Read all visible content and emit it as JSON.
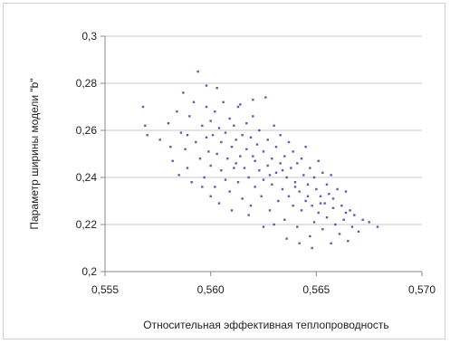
{
  "chart_data": {
    "type": "scatter",
    "title": "",
    "xlabel": "Относительная эффективная теплопроводность",
    "ylabel": "Параметр ширины модели \"b\"",
    "xlim": [
      0.555,
      0.57
    ],
    "ylim": [
      0.2,
      0.3
    ],
    "x_ticks": [
      "0,555",
      "0,560",
      "0,565",
      "0,570"
    ],
    "y_ticks": [
      "0,2",
      "0,22",
      "0,24",
      "0,26",
      "0,28",
      "0,3"
    ],
    "x_tick_values": [
      0.555,
      0.56,
      0.565,
      0.57
    ],
    "y_tick_values": [
      0.2,
      0.22,
      0.24,
      0.26,
      0.28,
      0.3
    ],
    "grid": "horizontal",
    "marker_color": "#2b3a9e",
    "grid_color": "#c8c8c8",
    "series": [
      {
        "points": [
          [
            0.5568,
            0.27
          ],
          [
            0.557,
            0.258
          ],
          [
            0.5569,
            0.262
          ],
          [
            0.5576,
            0.256
          ],
          [
            0.558,
            0.263
          ],
          [
            0.5581,
            0.253
          ],
          [
            0.5582,
            0.247
          ],
          [
            0.5584,
            0.268
          ],
          [
            0.5585,
            0.241
          ],
          [
            0.5586,
            0.259
          ],
          [
            0.5587,
            0.276
          ],
          [
            0.5588,
            0.252
          ],
          [
            0.5589,
            0.244
          ],
          [
            0.559,
            0.266
          ],
          [
            0.5591,
            0.238
          ],
          [
            0.5592,
            0.272
          ],
          [
            0.5593,
            0.255
          ],
          [
            0.5594,
            0.285
          ],
          [
            0.5595,
            0.248
          ],
          [
            0.5596,
            0.262
          ],
          [
            0.5597,
            0.24
          ],
          [
            0.5598,
            0.257
          ],
          [
            0.5598,
            0.27
          ],
          [
            0.5599,
            0.251
          ],
          [
            0.56,
            0.264
          ],
          [
            0.56,
            0.245
          ],
          [
            0.5601,
            0.258
          ],
          [
            0.5602,
            0.236
          ],
          [
            0.5602,
            0.268
          ],
          [
            0.5603,
            0.25
          ],
          [
            0.5604,
            0.261
          ],
          [
            0.5605,
            0.243
          ],
          [
            0.5605,
            0.255
          ],
          [
            0.5606,
            0.272
          ],
          [
            0.5607,
            0.239
          ],
          [
            0.5607,
            0.259
          ],
          [
            0.5608,
            0.248
          ],
          [
            0.5609,
            0.265
          ],
          [
            0.5609,
            0.234
          ],
          [
            0.561,
            0.253
          ],
          [
            0.5611,
            0.244
          ],
          [
            0.5611,
            0.262
          ],
          [
            0.5612,
            0.256
          ],
          [
            0.5613,
            0.238
          ],
          [
            0.5613,
            0.27
          ],
          [
            0.5614,
            0.249
          ],
          [
            0.5615,
            0.258
          ],
          [
            0.5615,
            0.231
          ],
          [
            0.5616,
            0.244
          ],
          [
            0.5617,
            0.263
          ],
          [
            0.5617,
            0.252
          ],
          [
            0.5618,
            0.24
          ],
          [
            0.5619,
            0.257
          ],
          [
            0.5619,
            0.228
          ],
          [
            0.562,
            0.266
          ],
          [
            0.5621,
            0.247
          ],
          [
            0.5621,
            0.236
          ],
          [
            0.5622,
            0.254
          ],
          [
            0.5623,
            0.243
          ],
          [
            0.5623,
            0.26
          ],
          [
            0.5624,
            0.232
          ],
          [
            0.5625,
            0.251
          ],
          [
            0.5625,
            0.239
          ],
          [
            0.5626,
            0.274
          ],
          [
            0.5627,
            0.245
          ],
          [
            0.5627,
            0.256
          ],
          [
            0.5628,
            0.226
          ],
          [
            0.5629,
            0.248
          ],
          [
            0.5629,
            0.237
          ],
          [
            0.563,
            0.262
          ],
          [
            0.5631,
            0.242
          ],
          [
            0.5631,
            0.253
          ],
          [
            0.5632,
            0.23
          ],
          [
            0.5633,
            0.246
          ],
          [
            0.5633,
            0.258
          ],
          [
            0.5634,
            0.235
          ],
          [
            0.5635,
            0.249
          ],
          [
            0.5635,
            0.222
          ],
          [
            0.5636,
            0.24
          ],
          [
            0.5637,
            0.255
          ],
          [
            0.5637,
            0.232
          ],
          [
            0.5638,
            0.244
          ],
          [
            0.5639,
            0.228
          ],
          [
            0.5639,
            0.251
          ],
          [
            0.564,
            0.238
          ],
          [
            0.5641,
            0.246
          ],
          [
            0.5641,
            0.219
          ],
          [
            0.5642,
            0.234
          ],
          [
            0.5643,
            0.248
          ],
          [
            0.5643,
            0.226
          ],
          [
            0.5644,
            0.241
          ],
          [
            0.5645,
            0.253
          ],
          [
            0.5645,
            0.23
          ],
          [
            0.5646,
            0.237
          ],
          [
            0.5647,
            0.215
          ],
          [
            0.5647,
            0.244
          ],
          [
            0.5648,
            0.228
          ],
          [
            0.5649,
            0.24
          ],
          [
            0.5649,
            0.221
          ],
          [
            0.565,
            0.235
          ],
          [
            0.5651,
            0.247
          ],
          [
            0.5651,
            0.225
          ],
          [
            0.5652,
            0.232
          ],
          [
            0.5653,
            0.242
          ],
          [
            0.5653,
            0.218
          ],
          [
            0.5654,
            0.229
          ],
          [
            0.5655,
            0.237
          ],
          [
            0.5655,
            0.223
          ],
          [
            0.5656,
            0.233
          ],
          [
            0.5657,
            0.212
          ],
          [
            0.5657,
            0.241
          ],
          [
            0.5658,
            0.227
          ],
          [
            0.5659,
            0.22
          ],
          [
            0.566,
            0.235
          ],
          [
            0.5661,
            0.216
          ],
          [
            0.5662,
            0.228
          ],
          [
            0.5663,
            0.222
          ],
          [
            0.5664,
            0.234
          ],
          [
            0.5665,
            0.213
          ],
          [
            0.5666,
            0.226
          ],
          [
            0.5667,
            0.219
          ],
          [
            0.5668,
            0.224
          ],
          [
            0.567,
            0.217
          ],
          [
            0.5672,
            0.222
          ],
          [
            0.5675,
            0.221
          ],
          [
            0.5679,
            0.219
          ],
          [
            0.5598,
            0.279
          ],
          [
            0.5603,
            0.278
          ],
          [
            0.562,
            0.273
          ],
          [
            0.5614,
            0.271
          ],
          [
            0.56,
            0.232
          ],
          [
            0.5596,
            0.236
          ],
          [
            0.561,
            0.226
          ],
          [
            0.5604,
            0.229
          ],
          [
            0.5618,
            0.224
          ],
          [
            0.5625,
            0.219
          ],
          [
            0.563,
            0.22
          ],
          [
            0.5636,
            0.214
          ],
          [
            0.5642,
            0.212
          ],
          [
            0.5648,
            0.21
          ],
          [
            0.5612,
            0.246
          ],
          [
            0.562,
            0.249
          ],
          [
            0.5628,
            0.241
          ],
          [
            0.5634,
            0.243
          ],
          [
            0.564,
            0.236
          ],
          [
            0.5646,
            0.232
          ],
          [
            0.5652,
            0.229
          ],
          [
            0.5658,
            0.231
          ],
          [
            0.5664,
            0.225
          ],
          [
            0.5589,
            0.258
          ]
        ]
      }
    ]
  }
}
